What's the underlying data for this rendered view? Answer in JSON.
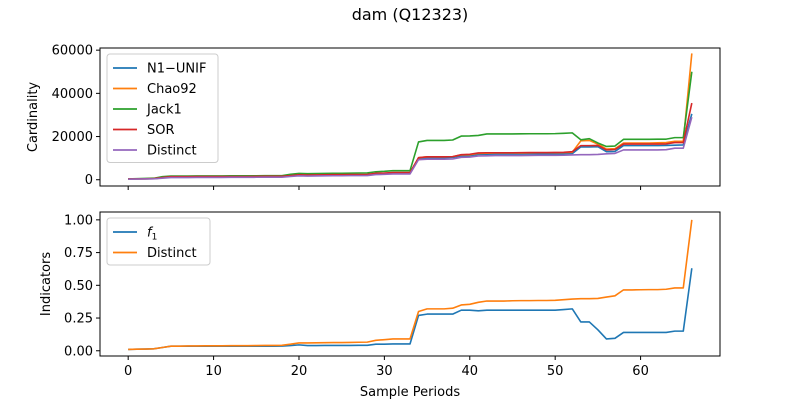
{
  "figure_title": "dam (Q12323)",
  "chart_data": [
    {
      "type": "line",
      "title": "",
      "xlabel": "",
      "ylabel": "Cardinality",
      "xlim": [
        -3.3,
        69.3
      ],
      "ylim": [
        -2900,
        61000
      ],
      "yticks": [
        0,
        20000,
        40000,
        60000
      ],
      "ytick_labels": [
        "0",
        "20000",
        "40000",
        "60000"
      ],
      "legend_position": "upper-left",
      "grid": false,
      "x": [
        0,
        1,
        2,
        3,
        4,
        5,
        6,
        7,
        8,
        9,
        10,
        11,
        12,
        13,
        14,
        15,
        16,
        17,
        18,
        19,
        20,
        21,
        22,
        23,
        24,
        25,
        26,
        27,
        28,
        29,
        30,
        31,
        32,
        33,
        34,
        35,
        36,
        37,
        38,
        39,
        40,
        41,
        42,
        43,
        44,
        45,
        46,
        47,
        48,
        49,
        50,
        51,
        52,
        53,
        54,
        55,
        56,
        57,
        58,
        59,
        60,
        61,
        62,
        63,
        64,
        65,
        66
      ],
      "series": [
        {
          "name": "N1−UNIF",
          "color": "#1f77b4",
          "values": [
            300,
            350,
            400,
            500,
            900,
            1300,
            1300,
            1300,
            1350,
            1350,
            1350,
            1350,
            1400,
            1400,
            1400,
            1450,
            1500,
            1500,
            1500,
            1800,
            2100,
            2000,
            2050,
            2100,
            2150,
            2150,
            2200,
            2200,
            2250,
            2700,
            2800,
            3000,
            3000,
            3000,
            9800,
            10200,
            10200,
            10200,
            10300,
            11000,
            11100,
            11700,
            11800,
            11900,
            11900,
            11900,
            11900,
            11950,
            12000,
            12000,
            12000,
            12050,
            12100,
            15200,
            15200,
            15300,
            13000,
            13100,
            15800,
            15800,
            15800,
            15800,
            15800,
            15900,
            16000,
            16100,
            30500
          ]
        },
        {
          "name": "Chao92",
          "color": "#ff7f0e",
          "values": [
            300,
            350,
            400,
            500,
            900,
            1300,
            1300,
            1300,
            1350,
            1350,
            1350,
            1350,
            1400,
            1400,
            1400,
            1450,
            1500,
            1500,
            1500,
            1800,
            2100,
            2000,
            2050,
            2100,
            2150,
            2150,
            2200,
            2200,
            2250,
            2700,
            2800,
            3000,
            3000,
            3000,
            10200,
            10600,
            10600,
            10600,
            10700,
            11500,
            11600,
            12200,
            12300,
            12400,
            12400,
            12400,
            12400,
            12450,
            12500,
            12500,
            12500,
            12550,
            12700,
            18000,
            18200,
            16500,
            14200,
            14400,
            17000,
            17000,
            17000,
            17000,
            17100,
            17200,
            17800,
            17800,
            58500
          ]
        },
        {
          "name": "Jack1",
          "color": "#2ca02c",
          "values": [
            400,
            500,
            600,
            700,
            1400,
            1700,
            1700,
            1700,
            1750,
            1750,
            1750,
            1750,
            1800,
            1800,
            1800,
            1850,
            1900,
            1900,
            1900,
            2500,
            2900,
            2800,
            2850,
            2900,
            3000,
            3000,
            3050,
            3100,
            3150,
            3700,
            3900,
            4200,
            4200,
            4200,
            17500,
            18200,
            18200,
            18200,
            18400,
            20200,
            20300,
            20500,
            21200,
            21200,
            21200,
            21200,
            21250,
            21300,
            21300,
            21300,
            21350,
            21500,
            21700,
            18500,
            19000,
            17000,
            15400,
            15600,
            18700,
            18700,
            18700,
            18700,
            18800,
            18800,
            19500,
            19500,
            50000
          ]
        },
        {
          "name": "SOR",
          "color": "#d62728",
          "values": [
            350,
            400,
            450,
            550,
            1000,
            1400,
            1400,
            1400,
            1450,
            1450,
            1450,
            1450,
            1500,
            1500,
            1500,
            1550,
            1600,
            1600,
            1600,
            1900,
            2300,
            2200,
            2250,
            2300,
            2350,
            2350,
            2400,
            2400,
            2450,
            3000,
            3100,
            3300,
            3300,
            3300,
            10200,
            10600,
            10600,
            10600,
            10700,
            11600,
            11800,
            12400,
            12500,
            12500,
            12500,
            12500,
            12550,
            12600,
            12600,
            12600,
            12650,
            12700,
            13000,
            15800,
            15800,
            15900,
            13800,
            14000,
            16500,
            16500,
            16500,
            16500,
            16500,
            16600,
            17200,
            17200,
            35500
          ]
        },
        {
          "name": "Distinct",
          "color": "#9467bd",
          "values": [
            250,
            300,
            350,
            400,
            700,
            1000,
            1000,
            1000,
            1050,
            1050,
            1050,
            1050,
            1100,
            1100,
            1100,
            1150,
            1200,
            1200,
            1200,
            1500,
            1800,
            1700,
            1750,
            1800,
            1850,
            1850,
            1900,
            1900,
            1950,
            2400,
            2500,
            2700,
            2700,
            2700,
            9300,
            9500,
            9500,
            9500,
            9600,
            10400,
            10500,
            11000,
            11100,
            11200,
            11200,
            11200,
            11200,
            11250,
            11300,
            11300,
            11300,
            11350,
            11500,
            11600,
            11600,
            11700,
            12000,
            12200,
            13800,
            13800,
            13800,
            13800,
            13800,
            13900,
            14600,
            14600,
            29000
          ]
        }
      ]
    },
    {
      "type": "line",
      "title": "",
      "xlabel": "Sample Periods",
      "ylabel": "Indicators",
      "xlim": [
        -3.3,
        69.3
      ],
      "ylim": [
        -0.04,
        1.06
      ],
      "xticks": [
        0,
        10,
        20,
        30,
        40,
        50,
        60
      ],
      "xtick_labels": [
        "0",
        "10",
        "20",
        "30",
        "40",
        "50",
        "60"
      ],
      "yticks": [
        0,
        0.25,
        0.5,
        0.75,
        1.0
      ],
      "ytick_labels": [
        "0.00",
        "0.25",
        "0.50",
        "0.75",
        "1.00"
      ],
      "legend_position": "upper-left",
      "grid": false,
      "x": [
        0,
        1,
        2,
        3,
        4,
        5,
        6,
        7,
        8,
        9,
        10,
        11,
        12,
        13,
        14,
        15,
        16,
        17,
        18,
        19,
        20,
        21,
        22,
        23,
        24,
        25,
        26,
        27,
        28,
        29,
        30,
        31,
        32,
        33,
        34,
        35,
        36,
        37,
        38,
        39,
        40,
        41,
        42,
        43,
        44,
        45,
        46,
        47,
        48,
        49,
        50,
        51,
        52,
        53,
        54,
        55,
        56,
        57,
        58,
        59,
        60,
        61,
        62,
        63,
        64,
        65,
        66
      ],
      "series": [
        {
          "name": "f1",
          "color": "#1f77b4",
          "values": [
            0.01,
            0.012,
            0.013,
            0.015,
            0.025,
            0.035,
            0.035,
            0.035,
            0.035,
            0.035,
            0.035,
            0.035,
            0.035,
            0.035,
            0.035,
            0.035,
            0.035,
            0.035,
            0.036,
            0.04,
            0.045,
            0.04,
            0.04,
            0.041,
            0.041,
            0.041,
            0.041,
            0.042,
            0.042,
            0.05,
            0.05,
            0.052,
            0.052,
            0.052,
            0.27,
            0.28,
            0.28,
            0.28,
            0.28,
            0.31,
            0.31,
            0.305,
            0.31,
            0.31,
            0.31,
            0.31,
            0.31,
            0.31,
            0.31,
            0.31,
            0.31,
            0.315,
            0.32,
            0.22,
            0.22,
            0.16,
            0.09,
            0.095,
            0.14,
            0.14,
            0.14,
            0.14,
            0.14,
            0.14,
            0.15,
            0.15,
            0.63
          ]
        },
        {
          "name": "Distinct",
          "color": "#ff7f0e",
          "values": [
            0.01,
            0.012,
            0.013,
            0.015,
            0.025,
            0.035,
            0.035,
            0.037,
            0.037,
            0.038,
            0.038,
            0.038,
            0.039,
            0.039,
            0.039,
            0.04,
            0.041,
            0.041,
            0.042,
            0.05,
            0.06,
            0.06,
            0.061,
            0.062,
            0.063,
            0.063,
            0.064,
            0.065,
            0.066,
            0.08,
            0.085,
            0.09,
            0.09,
            0.09,
            0.3,
            0.32,
            0.32,
            0.32,
            0.325,
            0.35,
            0.355,
            0.37,
            0.38,
            0.38,
            0.38,
            0.382,
            0.383,
            0.383,
            0.384,
            0.384,
            0.385,
            0.39,
            0.395,
            0.398,
            0.398,
            0.4,
            0.41,
            0.42,
            0.465,
            0.465,
            0.466,
            0.467,
            0.467,
            0.47,
            0.48,
            0.48,
            1.0
          ]
        }
      ]
    }
  ]
}
